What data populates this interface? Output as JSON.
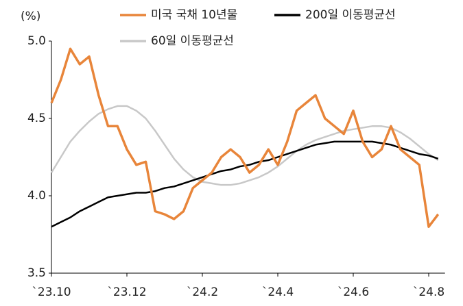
{
  "chart_data": {
    "type": "line",
    "y_label": "(%)",
    "categories": [
      "`23.10",
      null,
      null,
      null,
      null,
      null,
      null,
      null,
      "`23.12",
      null,
      null,
      null,
      null,
      null,
      null,
      null,
      "`24.2",
      null,
      null,
      null,
      null,
      null,
      null,
      null,
      "`24.4",
      null,
      null,
      null,
      null,
      null,
      null,
      null,
      "`24.6",
      null,
      null,
      null,
      null,
      null,
      null,
      null,
      "`24.8",
      null
    ],
    "series": [
      {
        "name": "미국 국채 10년물",
        "color": "#e8853a",
        "width": 3.5,
        "values": [
          4.6,
          4.75,
          4.95,
          4.85,
          4.9,
          4.65,
          4.45,
          4.45,
          4.3,
          4.2,
          4.22,
          3.9,
          3.88,
          3.85,
          3.9,
          4.05,
          4.1,
          4.15,
          4.25,
          4.3,
          4.25,
          4.15,
          4.2,
          4.3,
          4.2,
          4.35,
          4.55,
          4.6,
          4.65,
          4.5,
          4.45,
          4.4,
          4.55,
          4.35,
          4.25,
          4.3,
          4.45,
          4.3,
          4.25,
          4.2,
          3.8,
          3.88
        ]
      },
      {
        "name": "200일 이동평균선",
        "color": "#000000",
        "width": 2.5,
        "values": [
          3.8,
          3.83,
          3.86,
          3.9,
          3.93,
          3.96,
          3.99,
          4.0,
          4.01,
          4.02,
          4.02,
          4.03,
          4.05,
          4.06,
          4.08,
          4.1,
          4.12,
          4.14,
          4.16,
          4.17,
          4.19,
          4.2,
          4.22,
          4.23,
          4.25,
          4.27,
          4.29,
          4.31,
          4.33,
          4.34,
          4.35,
          4.35,
          4.35,
          4.35,
          4.35,
          4.34,
          4.33,
          4.31,
          4.29,
          4.27,
          4.26,
          4.24
        ]
      },
      {
        "name": "60일 이동평균선",
        "color": "#c8c8c8",
        "width": 2.5,
        "values": [
          4.15,
          4.25,
          4.35,
          4.42,
          4.48,
          4.53,
          4.56,
          4.58,
          4.58,
          4.55,
          4.5,
          4.42,
          4.33,
          4.24,
          4.17,
          4.12,
          4.09,
          4.08,
          4.07,
          4.07,
          4.08,
          4.1,
          4.12,
          4.15,
          4.19,
          4.24,
          4.29,
          4.33,
          4.36,
          4.38,
          4.4,
          4.42,
          4.43,
          4.44,
          4.45,
          4.45,
          4.44,
          4.41,
          4.37,
          4.32,
          4.27,
          4.23
        ]
      }
    ],
    "ylim": [
      3.5,
      5.0
    ],
    "yticks": [
      3.5,
      {
        "value": 4,
        "label": "4.0"
      },
      4.5,
      {
        "value": 5,
        "label": "5.0"
      }
    ]
  }
}
